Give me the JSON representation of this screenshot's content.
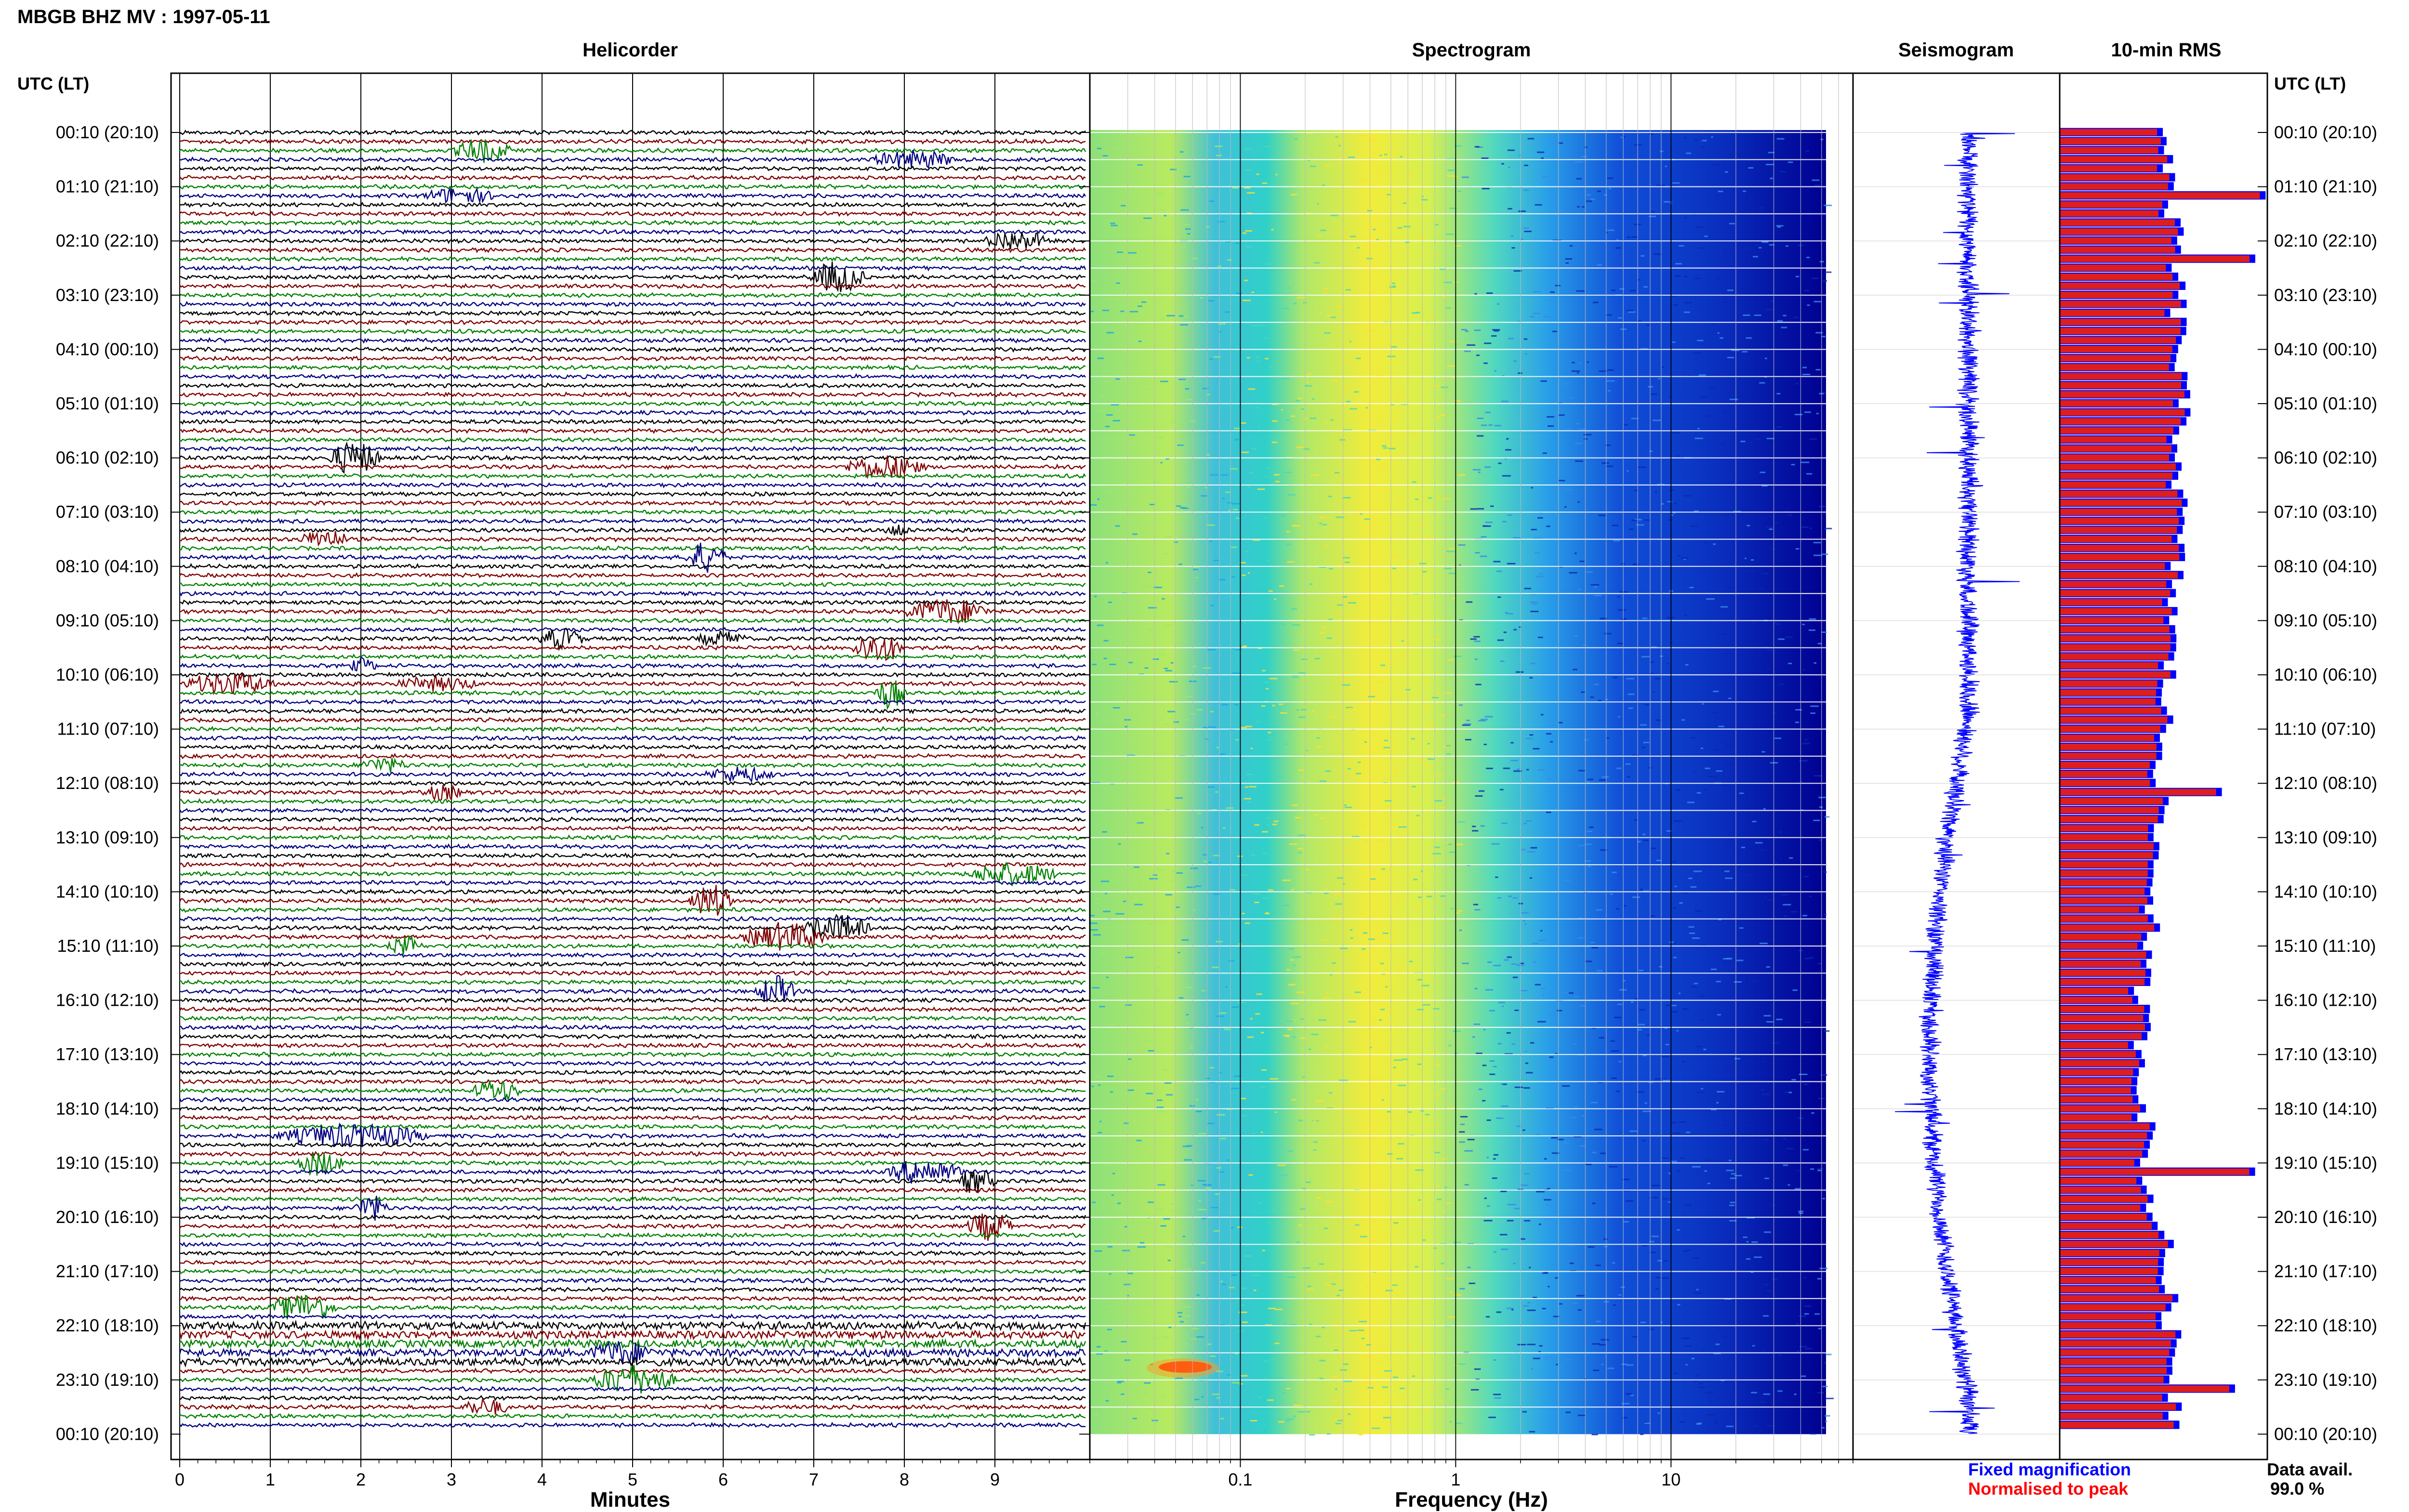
{
  "title": "MBGB BHZ MV : 1997-05-11",
  "panels": {
    "helicorder": "Helicorder",
    "spectrogram": "Spectrogram",
    "seismogram": "Seismogram",
    "rms": "10-min RMS"
  },
  "time_axis_header": "UTC (LT)",
  "legend": {
    "fixed": "Fixed magnification",
    "normalised": "Normalised to peak",
    "fixed_color": "#0000ff",
    "normalised_color": "#ff0000"
  },
  "data_avail": {
    "label": "Data avail.",
    "value": "99.0 %"
  },
  "colors": {
    "helicorder_traces": [
      "#000000",
      "#800000",
      "#008000",
      "#000080"
    ],
    "spectrogram_low": "#0000a0",
    "spectrogram_high": "#ffff00",
    "rms_fill": "#dc1e1e",
    "rms_edge": "#0000ff"
  },
  "chart_data": [
    {
      "type": "line",
      "name": "helicorder",
      "xlabel": "Minutes",
      "xlim": [
        0,
        10
      ],
      "xticks": [
        "0",
        "1",
        "2",
        "3",
        "4",
        "5",
        "6",
        "7",
        "8",
        "9"
      ],
      "rows": 144,
      "row_duration_min": 10,
      "time_labels": [
        "00:10 (20:10)",
        "01:10 (21:10)",
        "02:10 (22:10)",
        "03:10 (23:10)",
        "04:10 (00:10)",
        "05:10 (01:10)",
        "06:10 (02:10)",
        "07:10 (03:10)",
        "08:10 (04:10)",
        "09:10 (05:10)",
        "10:10 (06:10)",
        "11:10 (07:10)",
        "12:10 (08:10)",
        "13:10 (09:10)",
        "14:10 (10:10)",
        "15:10 (11:10)",
        "16:10 (12:10)",
        "17:10 (13:10)",
        "18:10 (14:10)",
        "19:10 (15:10)",
        "20:10 (16:10)",
        "21:10 (17:10)",
        "22:10 (18:10)",
        "23:10 (19:10)",
        "00:10 (20:10)"
      ]
    },
    {
      "type": "heatmap",
      "name": "spectrogram",
      "xlabel": "Frequency (Hz)",
      "xscale": "log",
      "xlim": [
        0.02,
        70
      ],
      "xticks": [
        "0.1",
        "1",
        "10"
      ]
    },
    {
      "type": "line",
      "name": "seismogram",
      "color": "blue"
    },
    {
      "type": "bar",
      "name": "10-min RMS",
      "orientation": "horizontal",
      "bar_count": 144,
      "peak_rows_hour": [
        1.2,
        2.3,
        12.2,
        19.1,
        23.1
      ]
    }
  ]
}
